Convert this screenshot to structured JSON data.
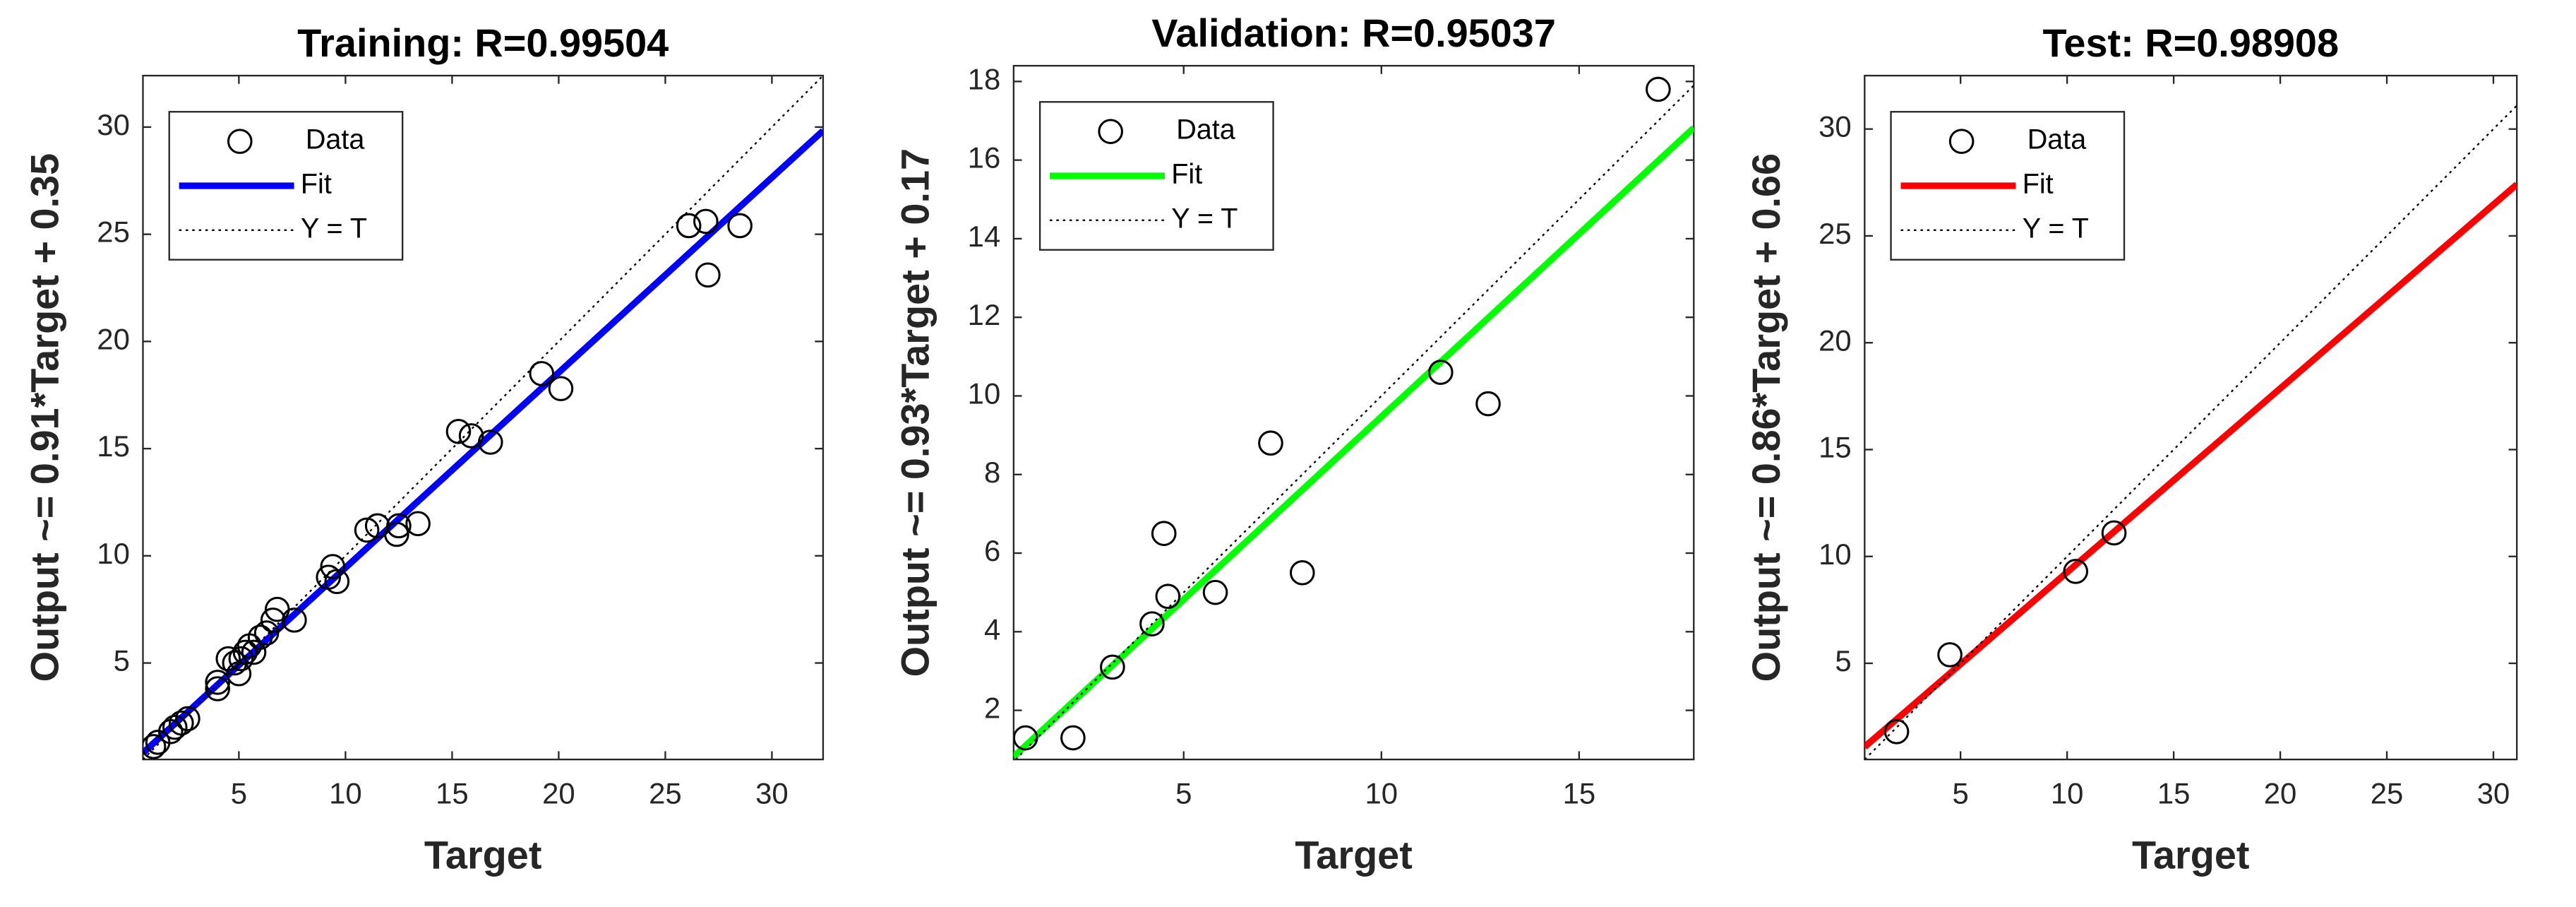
{
  "chart_data": [
    {
      "type": "scatter",
      "title": "Training: R=0.99504",
      "xlabel": "Target",
      "ylabel": "Output ~= 0.91*Target + 0.35",
      "xlim": [
        0.5,
        32.4
      ],
      "ylim": [
        0.5,
        32.4
      ],
      "xticks": [
        5,
        10,
        15,
        20,
        25,
        30
      ],
      "yticks": [
        5,
        10,
        15,
        20,
        25,
        30
      ],
      "legend": "upper left",
      "series": [
        {
          "name": "Data",
          "color": "#000000",
          "style": "markers",
          "x": [
            1.0,
            1.2,
            1.8,
            2.0,
            2.3,
            2.6,
            4.0,
            4.0,
            4.5,
            4.8,
            5.0,
            5.1,
            5.3,
            5.5,
            5.7,
            6.0,
            6.3,
            6.6,
            6.8,
            7.6,
            9.2,
            9.4,
            9.6,
            11.0,
            11.5,
            12.4,
            12.5,
            13.4,
            15.3,
            15.9,
            16.8,
            19.2,
            20.1,
            26.1,
            26.9,
            27.0,
            28.5
          ],
          "values": [
            1.1,
            1.3,
            1.8,
            2.0,
            2.2,
            2.4,
            3.8,
            4.1,
            5.2,
            5.0,
            4.5,
            5.2,
            5.5,
            5.8,
            5.5,
            6.2,
            6.4,
            7.0,
            7.5,
            7.0,
            9.0,
            9.5,
            8.8,
            11.2,
            11.4,
            11.0,
            11.4,
            11.5,
            15.8,
            15.6,
            15.3,
            18.5,
            17.8,
            25.4,
            25.6,
            23.1,
            25.4
          ]
        },
        {
          "name": "Fit",
          "color": "#0000ff",
          "style": "solid",
          "x": [
            0.5,
            32.4
          ],
          "values": [
            0.805,
            29.83
          ]
        },
        {
          "name": "Y = T",
          "color": "#000000",
          "style": "dotted",
          "x": [
            0.5,
            32.4
          ],
          "values": [
            0.5,
            32.4
          ]
        }
      ]
    },
    {
      "type": "scatter",
      "title": "Validation: R=0.95037",
      "xlabel": "Target",
      "ylabel": "Output ~= 0.93*Target + 0.17",
      "xlim": [
        0.7,
        17.9
      ],
      "ylim": [
        0.75,
        18.4
      ],
      "xticks": [
        5,
        10,
        15
      ],
      "yticks": [
        2,
        4,
        6,
        8,
        10,
        12,
        14,
        16,
        18
      ],
      "legend": "upper left",
      "series": [
        {
          "name": "Data",
          "color": "#000000",
          "style": "markers",
          "x": [
            1.0,
            2.2,
            3.2,
            4.2,
            4.5,
            4.6,
            5.8,
            7.2,
            8.0,
            11.5,
            12.7,
            17.0
          ],
          "values": [
            1.3,
            1.3,
            3.1,
            4.2,
            6.5,
            4.9,
            5.0,
            8.8,
            5.5,
            10.6,
            9.8,
            17.8
          ]
        },
        {
          "name": "Fit",
          "color": "#00ff00",
          "style": "solid",
          "x": [
            0.7,
            17.9
          ],
          "values": [
            0.82,
            16.82
          ]
        },
        {
          "name": "Y = T",
          "color": "#000000",
          "style": "dotted",
          "x": [
            0.75,
            17.9
          ],
          "values": [
            0.75,
            17.9
          ]
        }
      ]
    },
    {
      "type": "scatter",
      "title": "Test: R=0.98908",
      "xlabel": "Target",
      "ylabel": "Output ~= 0.86*Target + 0.66",
      "xlim": [
        0.5,
        31.1
      ],
      "ylim": [
        0.5,
        32.5
      ],
      "xticks": [
        5,
        10,
        15,
        20,
        25,
        30
      ],
      "yticks": [
        5,
        10,
        15,
        20,
        25,
        30
      ],
      "legend": "upper left",
      "series": [
        {
          "name": "Data",
          "color": "#000000",
          "style": "markers",
          "x": [
            2.0,
            4.5,
            10.4,
            12.2
          ],
          "values": [
            1.8,
            5.4,
            9.3,
            11.1
          ]
        },
        {
          "name": "Fit",
          "color": "#ff0000",
          "style": "solid",
          "x": [
            0.5,
            31.1
          ],
          "values": [
            1.09,
            27.41
          ]
        },
        {
          "name": "Y = T",
          "color": "#000000",
          "style": "dotted",
          "x": [
            0.5,
            31.1
          ],
          "values": [
            0.5,
            31.1
          ]
        }
      ]
    }
  ]
}
